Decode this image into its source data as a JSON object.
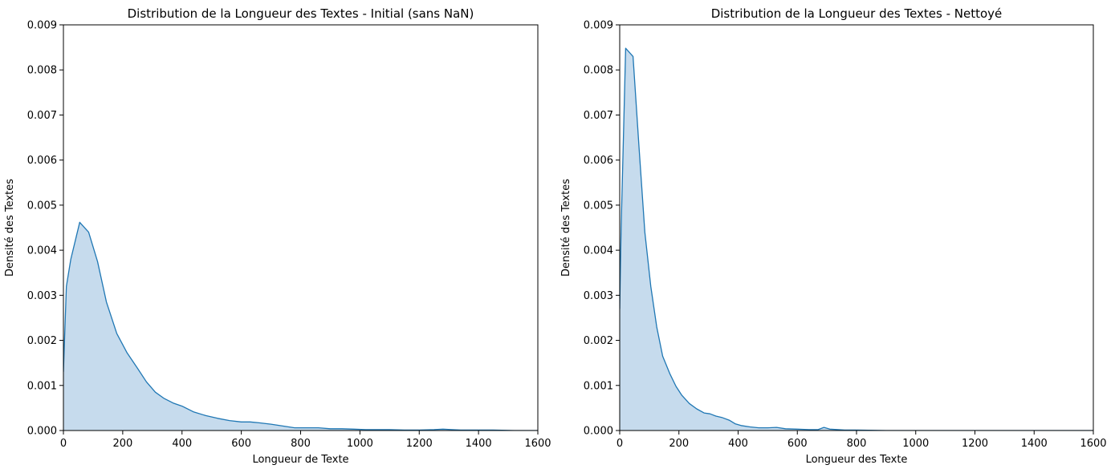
{
  "chart_data": [
    {
      "type": "area",
      "title": "Distribution de la Longueur des Textes - Initial (sans NaN)",
      "xlabel": "Longueur de Texte",
      "ylabel": "Densité des Textes",
      "xlim": [
        0,
        1600
      ],
      "ylim": [
        0,
        0.009
      ],
      "xticks": [
        0,
        200,
        400,
        600,
        800,
        1000,
        1200,
        1400,
        1600
      ],
      "xtick_labels": [
        "0",
        "200",
        "400",
        "600",
        "800",
        "1000",
        "1200",
        "1400",
        "1600"
      ],
      "yticks": [
        0,
        0.001,
        0.002,
        0.003,
        0.004,
        0.005,
        0.006,
        0.007,
        0.008,
        0.009
      ],
      "ytick_labels": [
        "0.000",
        "0.001",
        "0.002",
        "0.003",
        "0.004",
        "0.005",
        "0.006",
        "0.007",
        "0.008",
        "0.009"
      ],
      "grid": false,
      "color": "#1f77b4",
      "fill_color": "#c6dbed",
      "series": [
        {
          "x": [
            0,
            10,
            25,
            55,
            85,
            115,
            145,
            180,
            215,
            250,
            280,
            310,
            340,
            370,
            400,
            440,
            480,
            520,
            560,
            600,
            630,
            660,
            700,
            740,
            780,
            820,
            860,
            900,
            940,
            980,
            1020,
            1060,
            1100,
            1150,
            1200,
            1250,
            1280,
            1310,
            1340,
            1380,
            1450,
            1520,
            1600
          ],
          "y": [
            0.0013,
            0.0032,
            0.0038,
            0.00462,
            0.0044,
            0.00375,
            0.00285,
            0.00215,
            0.00172,
            0.00138,
            0.00108,
            0.00085,
            0.00071,
            0.00061,
            0.00054,
            0.00041,
            0.00033,
            0.00027,
            0.00022,
            0.00019,
            0.00019,
            0.00017,
            0.00014,
            0.0001,
            6e-05,
            6e-05,
            6e-05,
            4e-05,
            4e-05,
            3e-05,
            2e-05,
            2e-05,
            2e-05,
            1e-05,
            1e-05,
            2e-05,
            3e-05,
            2e-05,
            1e-05,
            1e-05,
            1e-05,
            0.0,
            0.0
          ]
        }
      ]
    },
    {
      "type": "area",
      "title": "Distribution de la Longueur des Textes - Nettoyé",
      "xlabel": "Longueur des Texte",
      "ylabel": "Densité des Textes",
      "xlim": [
        0,
        1600
      ],
      "ylim": [
        0,
        0.009
      ],
      "xticks": [
        0,
        200,
        400,
        600,
        800,
        1000,
        1200,
        1400,
        1600
      ],
      "xtick_labels": [
        "0",
        "200",
        "400",
        "600",
        "800",
        "1000",
        "1200",
        "1400",
        "1600"
      ],
      "yticks": [
        0,
        0.001,
        0.002,
        0.003,
        0.004,
        0.005,
        0.006,
        0.007,
        0.008,
        0.009
      ],
      "ytick_labels": [
        "0.000",
        "0.001",
        "0.002",
        "0.003",
        "0.004",
        "0.005",
        "0.006",
        "0.007",
        "0.008",
        "0.009"
      ],
      "grid": false,
      "color": "#1f77b4",
      "fill_color": "#c6dbed",
      "series": [
        {
          "x": [
            0,
            5,
            20,
            45,
            65,
            85,
            105,
            125,
            145,
            170,
            190,
            210,
            235,
            260,
            285,
            305,
            325,
            345,
            370,
            390,
            410,
            440,
            470,
            500,
            530,
            560,
            600,
            640,
            670,
            690,
            710,
            760,
            800,
            900,
            1000,
            1200,
            1400,
            1600
          ],
          "y": [
            0.0027,
            0.0045,
            0.00848,
            0.0083,
            0.0063,
            0.0044,
            0.0032,
            0.0023,
            0.00165,
            0.00125,
            0.00098,
            0.00078,
            0.0006,
            0.00048,
            0.00039,
            0.00037,
            0.00032,
            0.00029,
            0.00023,
            0.00015,
            0.00011,
            8e-05,
            6e-05,
            6e-05,
            7e-05,
            4e-05,
            3e-05,
            2e-05,
            2e-05,
            7e-05,
            3e-05,
            1e-05,
            1e-05,
            0.0,
            0.0,
            0.0,
            0.0,
            0.0
          ]
        }
      ]
    }
  ]
}
